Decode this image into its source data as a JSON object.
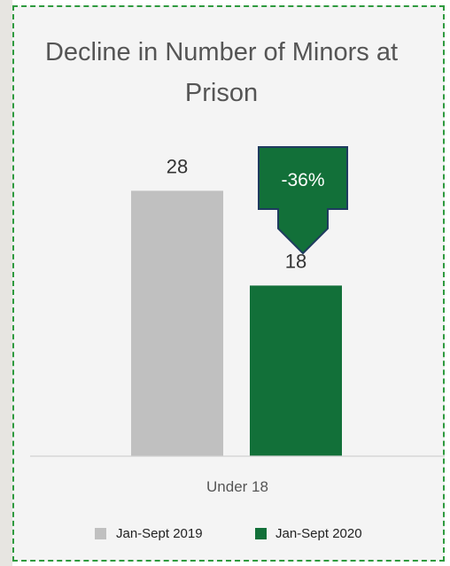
{
  "chart_data": {
    "type": "bar",
    "title": "Decline in Number of Minors at Prison",
    "categories": [
      "Under 18"
    ],
    "series": [
      {
        "name": "Jan-Sept 2019",
        "values": [
          28
        ],
        "color": "#c0c0c0"
      },
      {
        "name": "Jan-Sept 2020",
        "values": [
          18
        ],
        "color": "#127039"
      }
    ],
    "ylim": [
      0,
      30
    ],
    "grid": false,
    "legend_position": "bottom",
    "annotations": [
      {
        "text": "-36%",
        "shape": "down-arrow-callout",
        "fill": "#127039",
        "border": "#1f3b5f"
      }
    ]
  }
}
